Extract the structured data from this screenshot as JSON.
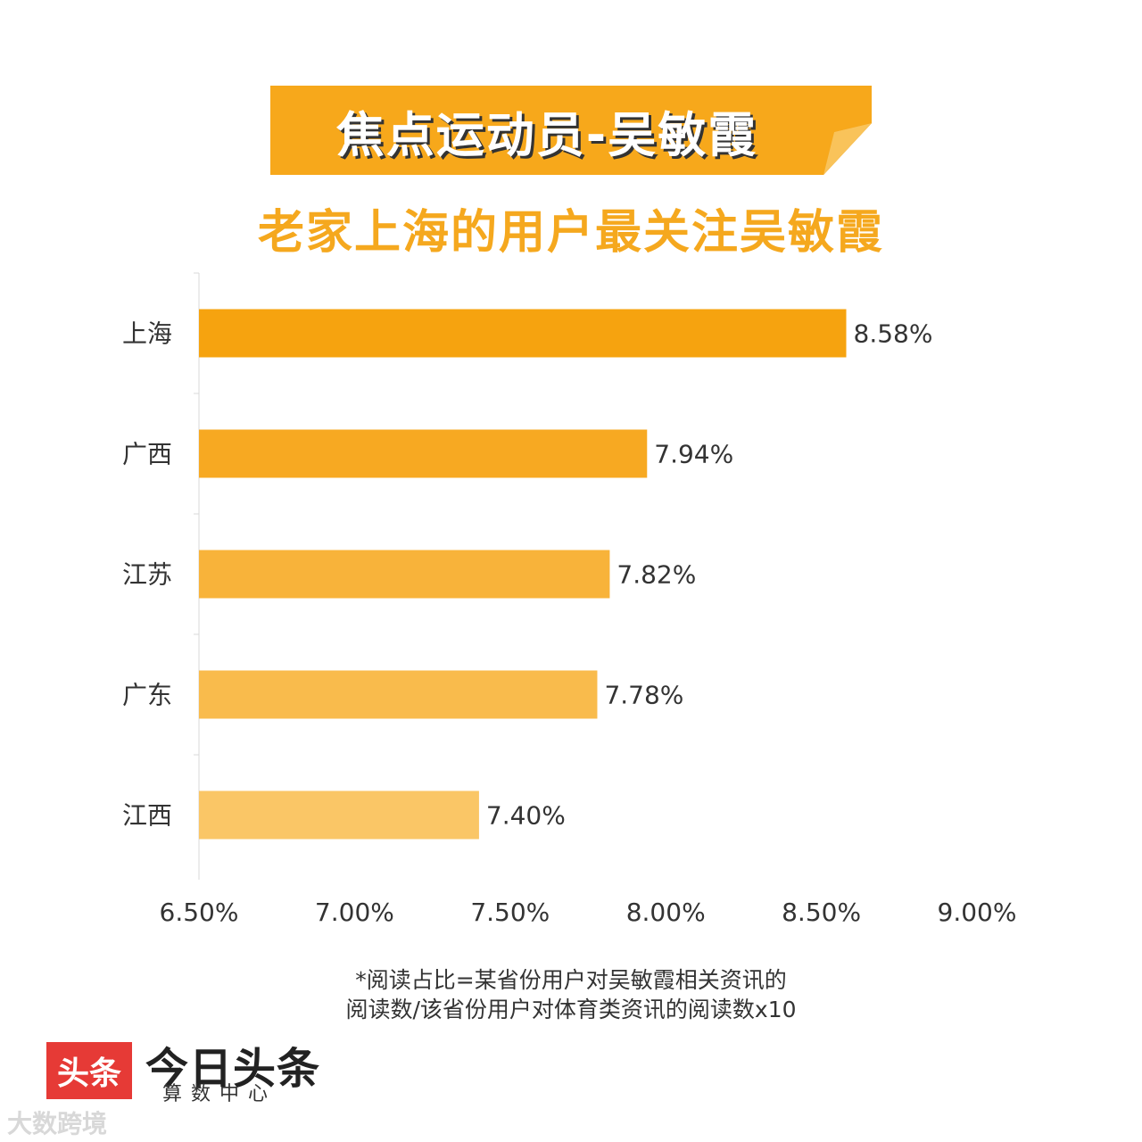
{
  "banner": {
    "title": "焦点运动员-吴敏霞"
  },
  "subtitle": "老家上海的用户最关注吴敏霞",
  "chart_data": {
    "type": "bar",
    "orientation": "horizontal",
    "title": "",
    "xlabel": "",
    "ylabel": "",
    "categories": [
      "上海",
      "广西",
      "江苏",
      "广东",
      "江西"
    ],
    "values": [
      8.58,
      7.94,
      7.82,
      7.78,
      7.4
    ],
    "value_labels": [
      "8.58%",
      "7.94%",
      "7.82%",
      "7.78%",
      "7.40%"
    ],
    "xlim": [
      6.5,
      9.0
    ],
    "x_ticks": [
      6.5,
      7.0,
      7.5,
      8.0,
      8.5,
      9.0
    ],
    "x_tick_labels": [
      "6.50%",
      "7.00%",
      "7.50%",
      "8.00%",
      "8.50%",
      "9.00%"
    ],
    "bar_colors": [
      "#f6a30f",
      "#f7a922",
      "#f8b33a",
      "#f9bb4c",
      "#fac666"
    ],
    "grid": false,
    "legend": "none"
  },
  "footnote": {
    "line1": "*阅读占比=某省份用户对吴敏霞相关资讯的",
    "line2": "阅读数/该省份用户对体育类资讯的阅读数x10"
  },
  "brand": {
    "logo_text": "头条",
    "name": "今日头条",
    "sub": "算数中心"
  },
  "watermark": "大数跨境",
  "colors": {
    "banner_fill": "#f7a81b",
    "subtitle": "#f5a81e"
  }
}
